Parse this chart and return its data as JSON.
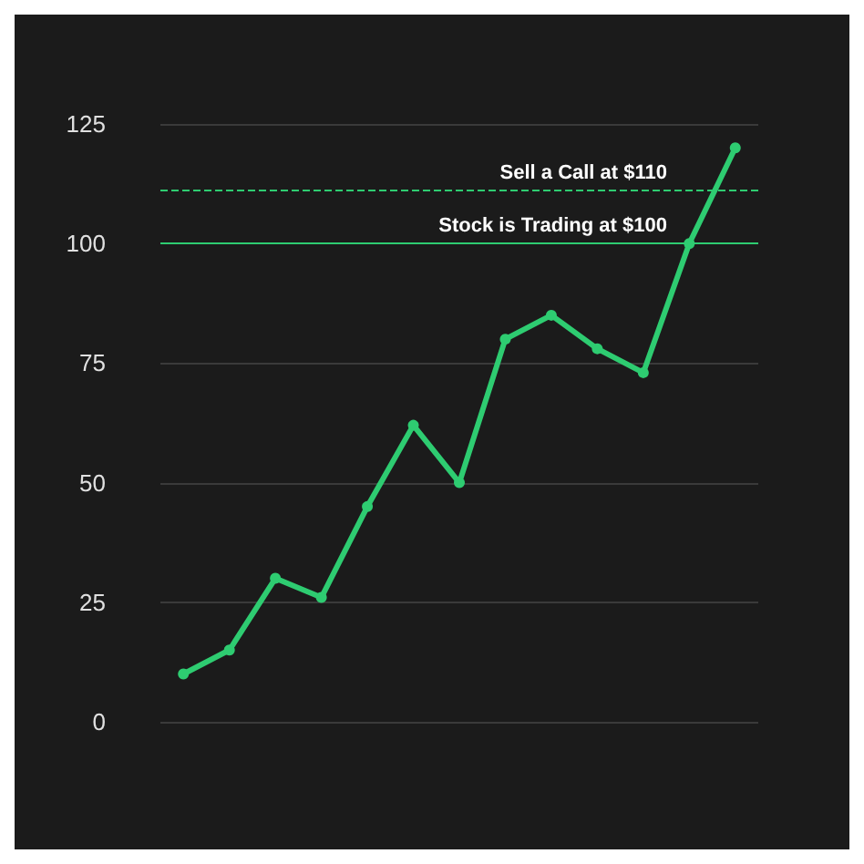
{
  "chart_data": {
    "type": "line",
    "categories": [
      null,
      null,
      null,
      null,
      null,
      null,
      null,
      null,
      null,
      null,
      null,
      null,
      null
    ],
    "series": [
      {
        "color": "#2ecc71",
        "values": [
          10,
          15,
          30,
          26,
          45,
          62,
          50,
          80,
          85,
          78,
          73,
          100,
          120
        ]
      }
    ],
    "ylim": [
      0,
      125
    ],
    "yticks": [
      0,
      25,
      50,
      75,
      100,
      125
    ],
    "grid": "y",
    "marker": "circle",
    "line_style": "solid",
    "ref_lines": [
      {
        "axis": "y",
        "value": 111,
        "label": "Sell a Call at $110",
        "color": "#2ecc71",
        "line_style": "dashed"
      },
      {
        "axis": "y",
        "value": 100,
        "label": "Stock is Trading at $100",
        "color": "#2ecc71",
        "line_style": "solid"
      }
    ]
  }
}
